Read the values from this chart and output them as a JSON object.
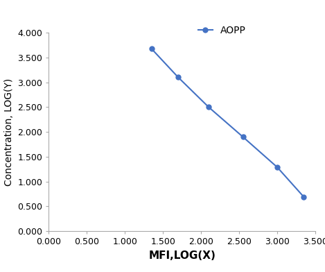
{
  "x": [
    1.35,
    1.7,
    2.1,
    2.55,
    3.0,
    3.35
  ],
  "y": [
    3.675,
    3.1,
    2.5,
    1.9,
    1.29,
    0.69
  ],
  "line_color": "#4472C4",
  "marker": "o",
  "marker_size": 5,
  "legend_label": "AOPP",
  "xlabel": "MFI,LOG(X)",
  "ylabel": "Concentration, LOG(Y)",
  "xlim": [
    0.0,
    3.5
  ],
  "ylim": [
    0.0,
    4.0
  ],
  "xticks": [
    0.0,
    0.5,
    1.0,
    1.5,
    2.0,
    2.5,
    3.0,
    3.5
  ],
  "yticks": [
    0.0,
    0.5,
    1.0,
    1.5,
    2.0,
    2.5,
    3.0,
    3.5,
    4.0
  ],
  "xlabel_fontsize": 11,
  "ylabel_fontsize": 10,
  "legend_fontsize": 10,
  "tick_fontsize": 9,
  "spine_color": "#AAAAAA",
  "figsize": [
    4.69,
    3.92
  ],
  "dpi": 100
}
